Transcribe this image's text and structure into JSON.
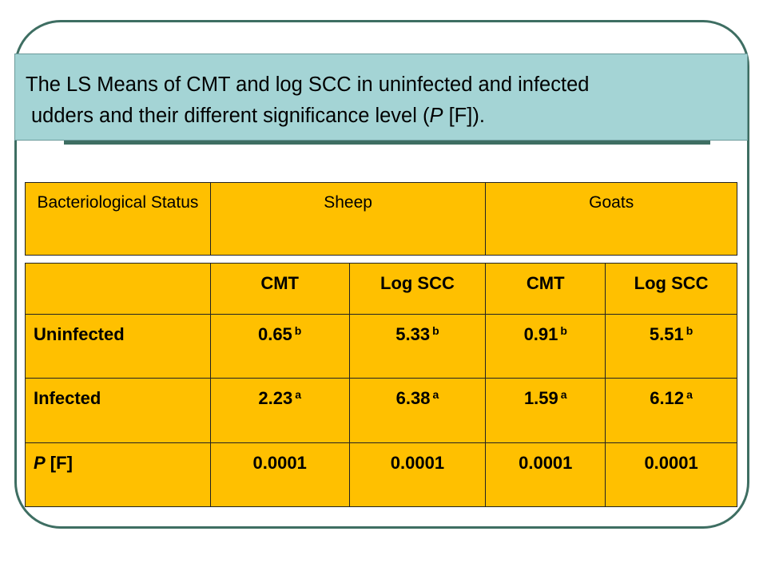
{
  "title": {
    "line1": "The LS Means of CMT and log SCC in uninfected and infected",
    "line2_prefix": "udders and their different significance level (",
    "line2_italic": "P",
    "line2_suffix": " [F])."
  },
  "header_table": {
    "col1": "Bacteriological Status",
    "col2": "Sheep",
    "col3": "Goats"
  },
  "data_table": {
    "columns": [
      "",
      "CMT",
      "Log  SCC",
      "CMT",
      "Log  SCC"
    ],
    "rows": [
      {
        "label": "Uninfected",
        "cells": [
          {
            "value": "0.65",
            "sig": "b"
          },
          {
            "value": "5.33",
            "sig": "b"
          },
          {
            "value": "0.91",
            "sig": "b"
          },
          {
            "value": "5.51",
            "sig": "b"
          }
        ]
      },
      {
        "label": "Infected",
        "cells": [
          {
            "value": "2.23",
            "sig": "a"
          },
          {
            "value": "6.38",
            "sig": "a"
          },
          {
            "value": "1.59",
            "sig": "a"
          },
          {
            "value": "6.12",
            "sig": "a"
          }
        ]
      },
      {
        "label_italic": "P",
        "label_suffix": " [F]",
        "cells": [
          {
            "value": "0.0001",
            "sig": ""
          },
          {
            "value": "0.0001",
            "sig": ""
          },
          {
            "value": "0.0001",
            "sig": ""
          },
          {
            "value": "0.0001",
            "sig": ""
          }
        ]
      }
    ]
  },
  "colors": {
    "table_fill": "#ffc000",
    "title_fill": "#a4d4d5",
    "frame_stroke": "#3e6e62"
  }
}
